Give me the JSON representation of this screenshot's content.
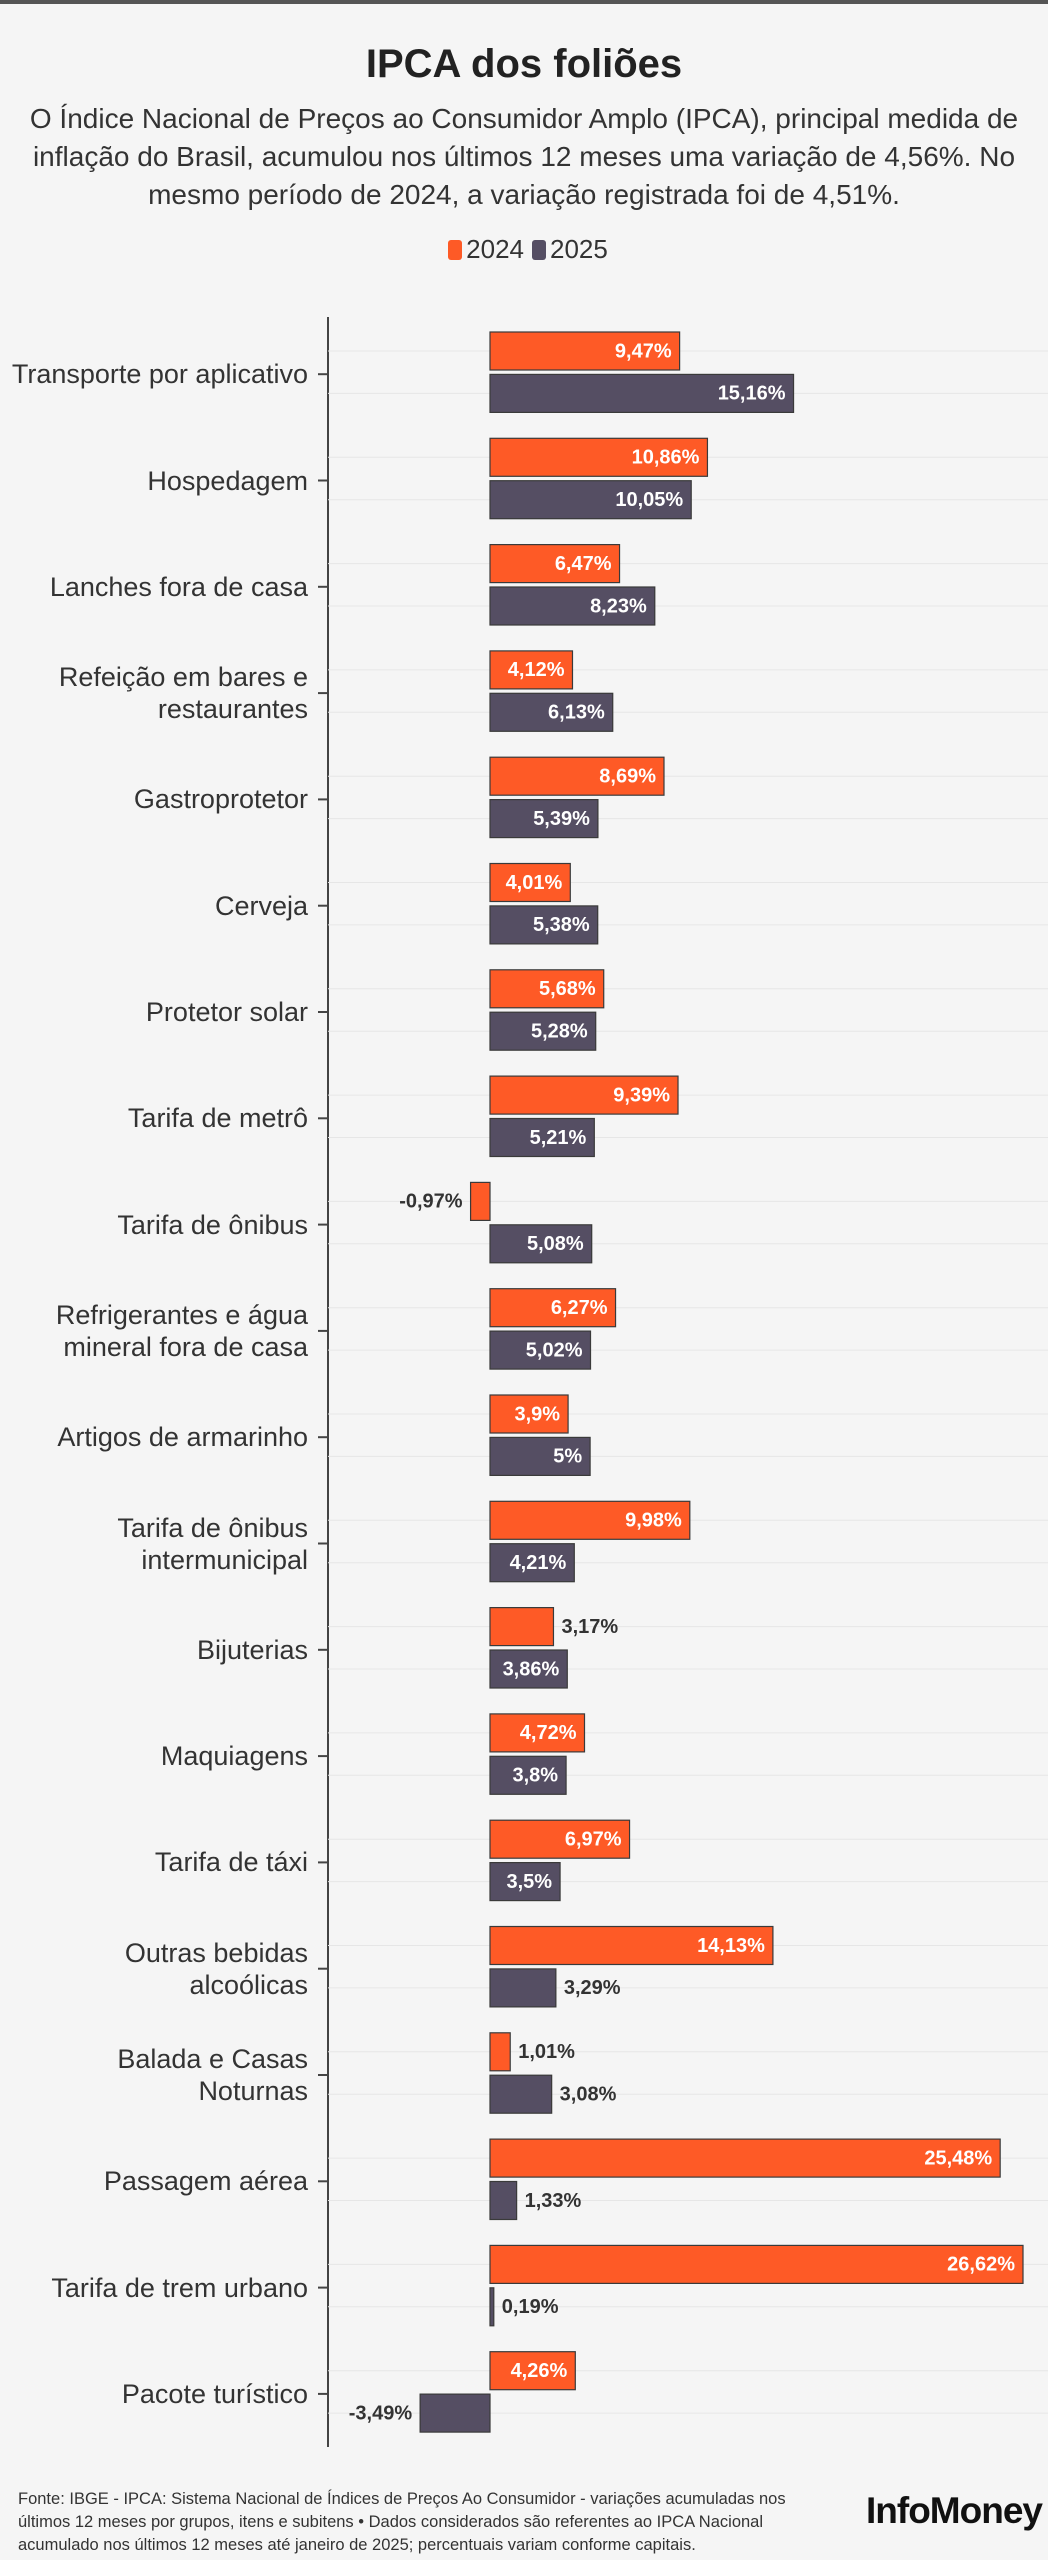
{
  "chart_data": {
    "type": "bar",
    "title": "IPCA dos foliões",
    "subtitle": "O Índice Nacional de Preços ao Consumidor Amplo (IPCA), principal medida de inflação do Brasil, acumulou nos últimos 12 meses uma variação de 4,56%. No mesmo período de 2024, a variação registrada foi de 4,51%.",
    "categories": [
      "Transporte por aplicativo",
      "Hospedagem",
      "Lanches fora de casa",
      "Refeição em bares e restaurantes",
      "Gastroprotetor",
      "Cerveja",
      "Protetor solar",
      "Tarifa de metrô",
      "Tarifa de ônibus",
      "Refrigerantes e água mineral fora de casa",
      "Artigos de armarinho",
      "Tarifa de ônibus intermunicipal",
      "Bijuterias",
      "Maquiagens",
      "Tarifa de táxi",
      "Outras bebidas alcoólicas",
      "Balada e Casas Noturnas",
      "Passagem aérea",
      "Tarifa de trem urbano",
      "Pacote turístico"
    ],
    "series": [
      {
        "name": "2024",
        "color": "#fe5a26",
        "values": [
          9.47,
          10.86,
          6.47,
          4.12,
          8.69,
          4.01,
          5.68,
          9.39,
          -0.97,
          6.27,
          3.9,
          9.98,
          3.17,
          4.72,
          6.97,
          14.13,
          1.01,
          25.48,
          26.62,
          4.26
        ],
        "value_labels": [
          "9,47%",
          "10,86%",
          "6,47%",
          "4,12%",
          "8,69%",
          "4,01%",
          "5,68%",
          "9,39%",
          "-0,97%",
          "6,27%",
          "3,9%",
          "9,98%",
          "3,17%",
          "4,72%",
          "6,97%",
          "14,13%",
          "1,01%",
          "25,48%",
          "26,62%",
          "4,26%"
        ]
      },
      {
        "name": "2025",
        "color": "#554e63",
        "values": [
          15.16,
          10.05,
          8.23,
          6.13,
          5.39,
          5.38,
          5.28,
          5.21,
          5.08,
          5.02,
          5,
          4.21,
          3.86,
          3.8,
          3.5,
          3.29,
          3.08,
          1.33,
          0.19,
          -3.49
        ],
        "value_labels": [
          "15,16%",
          "10,05%",
          "8,23%",
          "6,13%",
          "5,39%",
          "5,38%",
          "5,28%",
          "5,21%",
          "5,08%",
          "5,02%",
          "5%",
          "4,21%",
          "3,86%",
          "3,8%",
          "3,5%",
          "3,29%",
          "3,08%",
          "1,33%",
          "0,19%",
          "-3,49%"
        ]
      }
    ]
  },
  "footer": {
    "source": "Fonte: IBGE - IPCA: Sistema Nacional de Índices de Preços Ao Consumidor - variações acumuladas nos últimos 12 meses por grupos, itens e subitens • Dados considerados são referentes ao IPCA Nacional acumulado nos últimos 12 meses até janeiro de 2025; percentuais variam conforme capitais.",
    "logo": "InfoMoney"
  }
}
